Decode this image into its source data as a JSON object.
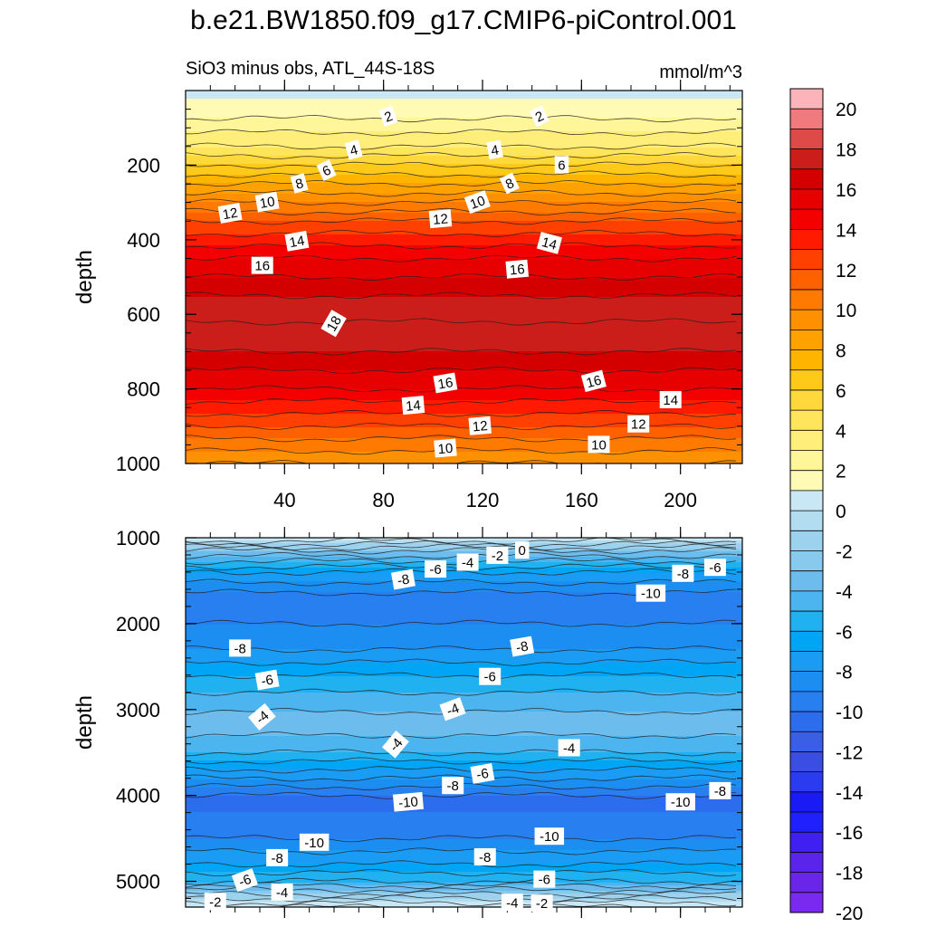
{
  "title": "b.e21.BW1850.f09_g17.CMIP6-piControl.001",
  "chart_data": [
    {
      "type": "contour",
      "panel": "upper",
      "subtitle_left": "SiO3 minus obs, ATL_44S-18S",
      "subtitle_right": "mmol/m^3",
      "ylabel": "depth",
      "ylim": [
        0,
        1000
      ],
      "xlim": [
        0,
        225
      ],
      "yticks": [
        "200",
        "400",
        "600",
        "800",
        "1000"
      ],
      "ytick_values": [
        200,
        400,
        600,
        800,
        1000
      ],
      "xticks": [
        "40",
        "80",
        "120",
        "160",
        "200"
      ],
      "xtick_values": [
        40,
        80,
        120,
        160,
        200
      ],
      "field_profile": {
        "depth": [
          25,
          75,
          150,
          250,
          350,
          450,
          550,
          620,
          700,
          800,
          900,
          1000
        ],
        "value": [
          1,
          2,
          4,
          8,
          12,
          15,
          17,
          18,
          17,
          15,
          12,
          9
        ]
      },
      "contour_labels": [
        {
          "text": "2",
          "x": 82,
          "y": 70,
          "rot": -20
        },
        {
          "text": "2",
          "x": 143,
          "y": 70,
          "rot": -25
        },
        {
          "text": "4",
          "x": 68,
          "y": 160,
          "rot": -15
        },
        {
          "text": "4",
          "x": 125,
          "y": 160,
          "rot": -10
        },
        {
          "text": "6",
          "x": 57,
          "y": 215,
          "rot": -25
        },
        {
          "text": "6",
          "x": 152,
          "y": 200,
          "rot": 0
        },
        {
          "text": "8",
          "x": 46,
          "y": 250,
          "rot": -15
        },
        {
          "text": "8",
          "x": 131,
          "y": 250,
          "rot": -25
        },
        {
          "text": "10",
          "x": 33,
          "y": 300,
          "rot": -10
        },
        {
          "text": "10",
          "x": 118,
          "y": 300,
          "rot": -20
        },
        {
          "text": "12",
          "x": 18,
          "y": 330,
          "rot": -10
        },
        {
          "text": "12",
          "x": 103,
          "y": 345,
          "rot": -5
        },
        {
          "text": "14",
          "x": 45,
          "y": 405,
          "rot": -10
        },
        {
          "text": "14",
          "x": 147,
          "y": 410,
          "rot": 15
        },
        {
          "text": "16",
          "x": 31,
          "y": 470,
          "rot": 0
        },
        {
          "text": "16",
          "x": 134,
          "y": 480,
          "rot": -5
        },
        {
          "text": "18",
          "x": 60,
          "y": 625,
          "rot": -60
        },
        {
          "text": "16",
          "x": 105,
          "y": 785,
          "rot": -10
        },
        {
          "text": "16",
          "x": 165,
          "y": 780,
          "rot": -15
        },
        {
          "text": "14",
          "x": 92,
          "y": 845,
          "rot": -5
        },
        {
          "text": "14",
          "x": 196,
          "y": 830,
          "rot": 0
        },
        {
          "text": "12",
          "x": 119,
          "y": 900,
          "rot": -5
        },
        {
          "text": "12",
          "x": 183,
          "y": 895,
          "rot": 0
        },
        {
          "text": "10",
          "x": 105,
          "y": 960,
          "rot": -5
        },
        {
          "text": "10",
          "x": 167,
          "y": 950,
          "rot": 0
        }
      ]
    },
    {
      "type": "contour",
      "panel": "lower",
      "ylabel": "depth",
      "ylim": [
        1000,
        5300
      ],
      "xlim": [
        0,
        225
      ],
      "yticks": [
        "1000",
        "2000",
        "3000",
        "4000",
        "5000"
      ],
      "ytick_values": [
        1000,
        2000,
        3000,
        4000,
        5000
      ],
      "field_profile": {
        "depth": [
          1000,
          1150,
          1400,
          1700,
          2000,
          2300,
          2600,
          2900,
          3150,
          3450,
          3700,
          4000,
          4200,
          4500,
          4800,
          5000,
          5150,
          5300
        ],
        "value": [
          1,
          -3,
          -7,
          -9.5,
          -9,
          -8,
          -6,
          -4.5,
          -3.5,
          -4.5,
          -7,
          -10,
          -10,
          -9,
          -7,
          -5,
          -2,
          1
        ]
      },
      "contour_labels": [
        {
          "text": "0",
          "x": 136,
          "y": 1150,
          "rot": 0
        },
        {
          "text": "-2",
          "x": 126,
          "y": 1210,
          "rot": 0
        },
        {
          "text": "-4",
          "x": 114,
          "y": 1290,
          "rot": 0
        },
        {
          "text": "-6",
          "x": 101,
          "y": 1370,
          "rot": 0
        },
        {
          "text": "-8",
          "x": 88,
          "y": 1490,
          "rot": -10
        },
        {
          "text": "-8",
          "x": 201,
          "y": 1420,
          "rot": 0
        },
        {
          "text": "-6",
          "x": 214,
          "y": 1350,
          "rot": 0
        },
        {
          "text": "-10",
          "x": 188,
          "y": 1650,
          "rot": 0
        },
        {
          "text": "-8",
          "x": 22,
          "y": 2290,
          "rot": 0
        },
        {
          "text": "-8",
          "x": 136,
          "y": 2270,
          "rot": -10
        },
        {
          "text": "-6",
          "x": 33,
          "y": 2660,
          "rot": -10
        },
        {
          "text": "-6",
          "x": 123,
          "y": 2620,
          "rot": 0
        },
        {
          "text": "-4",
          "x": 31,
          "y": 3090,
          "rot": -40
        },
        {
          "text": "-4",
          "x": 108,
          "y": 3000,
          "rot": -20
        },
        {
          "text": "-4",
          "x": 85,
          "y": 3410,
          "rot": -50
        },
        {
          "text": "-4",
          "x": 155,
          "y": 3450,
          "rot": 0
        },
        {
          "text": "-6",
          "x": 120,
          "y": 3750,
          "rot": -10
        },
        {
          "text": "-8",
          "x": 108,
          "y": 3890,
          "rot": 0
        },
        {
          "text": "-10",
          "x": 90,
          "y": 4080,
          "rot": -5
        },
        {
          "text": "-10",
          "x": 200,
          "y": 4080,
          "rot": 0
        },
        {
          "text": "-8",
          "x": 216,
          "y": 3950,
          "rot": 0
        },
        {
          "text": "-10",
          "x": 52,
          "y": 4550,
          "rot": 0
        },
        {
          "text": "-10",
          "x": 147,
          "y": 4480,
          "rot": 0
        },
        {
          "text": "-8",
          "x": 37,
          "y": 4730,
          "rot": 0
        },
        {
          "text": "-8",
          "x": 121,
          "y": 4720,
          "rot": 0
        },
        {
          "text": "-6",
          "x": 24,
          "y": 4990,
          "rot": -20
        },
        {
          "text": "-6",
          "x": 145,
          "y": 4980,
          "rot": 0
        },
        {
          "text": "-4",
          "x": 39,
          "y": 5130,
          "rot": 0
        },
        {
          "text": "-4",
          "x": 132,
          "y": 5250,
          "rot": 0
        },
        {
          "text": "-2",
          "x": 12,
          "y": 5240,
          "rot": 0
        },
        {
          "text": "-2",
          "x": 144,
          "y": 5260,
          "rot": 0
        }
      ]
    }
  ],
  "colorbar": {
    "labels": [
      "20",
      "18",
      "16",
      "14",
      "12",
      "10",
      "8",
      "6",
      "4",
      "2",
      "0",
      "-2",
      "-4",
      "-6",
      "-8",
      "-10",
      "-12",
      "-14",
      "-16",
      "-18",
      "-20"
    ],
    "colors": [
      "#fbb4b9",
      "#f07a7e",
      "#de4a48",
      "#cb1d1a",
      "#d40000",
      "#e60000",
      "#f50000",
      "#ff1a00",
      "#ff4000",
      "#ff6100",
      "#ff7a00",
      "#ff9000",
      "#ffa200",
      "#ffb400",
      "#ffc91a",
      "#ffd93b",
      "#ffe55c",
      "#ffee7a",
      "#fff599",
      "#fffab4",
      "#c9e7f5",
      "#b2ddf0",
      "#9dd2ee",
      "#88c9ee",
      "#6cbdee",
      "#4cb5f0",
      "#1fb1f0",
      "#00a6f5",
      "#1a9cf5",
      "#1c8ef2",
      "#2880f0",
      "#2c6ded",
      "#3a5ee6",
      "#3a4ee4",
      "#2b3cf0",
      "#1a1af5",
      "#2020ff",
      "#4020f0",
      "#5a24ea",
      "#6a26e8",
      "#7a2aee"
    ]
  }
}
